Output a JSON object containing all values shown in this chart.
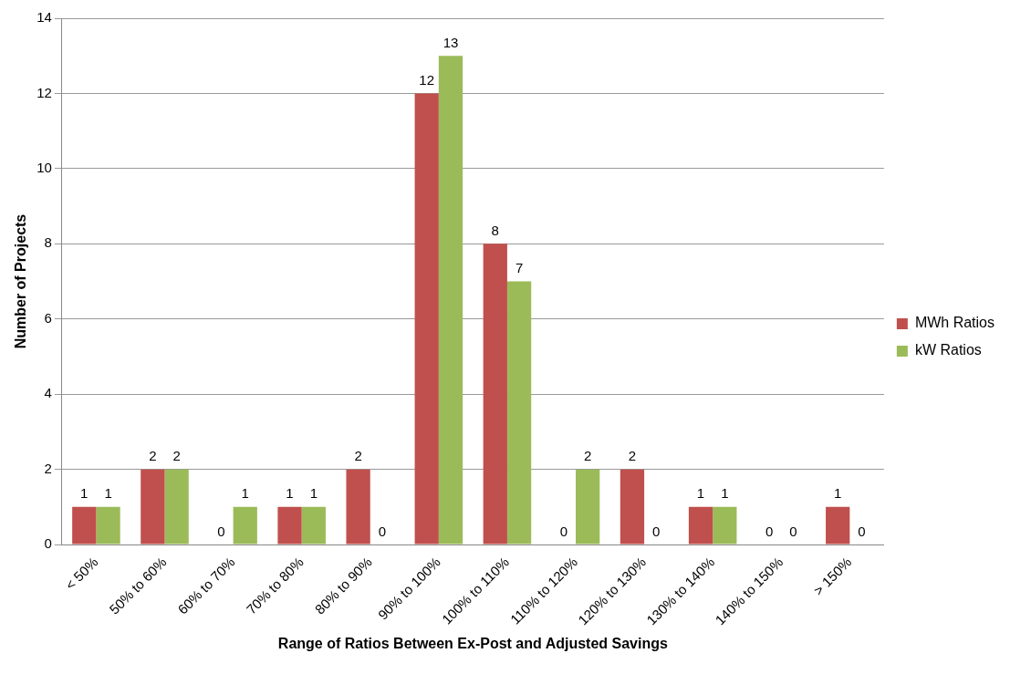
{
  "chart_data": {
    "type": "bar",
    "xlabel": "Range of Ratios Between Ex-Post and Adjusted Savings",
    "ylabel": "Number of Projects",
    "categories": [
      "< 50%",
      "50% to 60%",
      "60% to 70%",
      "70% to 80%",
      "80% to 90%",
      "90% to 100%",
      "100% to 110%",
      "110% to 120%",
      "120% to 130%",
      "130% to 140%",
      "140% to 150%",
      "> 150%"
    ],
    "series": [
      {
        "name": "MWh Ratios",
        "color": "#c0504d",
        "values": [
          1,
          2,
          0,
          1,
          2,
          12,
          8,
          0,
          2,
          1,
          0,
          1
        ]
      },
      {
        "name": "kW Ratios",
        "color": "#9bbb59",
        "values": [
          1,
          2,
          1,
          1,
          0,
          13,
          7,
          2,
          0,
          1,
          0,
          0
        ]
      }
    ],
    "ylim": [
      0,
      14
    ],
    "yticks": [
      0,
      2,
      4,
      6,
      8,
      10,
      12,
      14
    ],
    "grid": "y",
    "legend": "right",
    "data_labels": true
  }
}
